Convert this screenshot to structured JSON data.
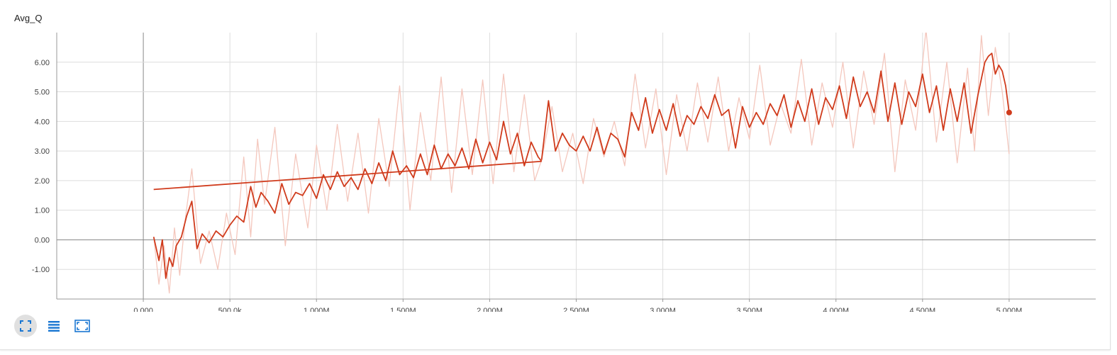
{
  "chart_data": {
    "type": "line",
    "title": "Avg_Q",
    "xlabel": "",
    "ylabel": "",
    "xlim": [
      -500000,
      5500000
    ],
    "ylim": [
      -2.0,
      7.0
    ],
    "x_ticks": [
      0,
      500000,
      1000000,
      1500000,
      2000000,
      2500000,
      3000000,
      3500000,
      4000000,
      4500000,
      5000000
    ],
    "x_tick_labels": [
      "0.000",
      "500.0k",
      "1.000M",
      "1.500M",
      "2.000M",
      "2.500M",
      "3.000M",
      "3.500M",
      "4.000M",
      "4.500M",
      "5.000M"
    ],
    "y_ticks": [
      -1,
      0,
      1,
      2,
      3,
      4,
      5,
      6
    ],
    "y_tick_labels": [
      "-1.00",
      "0.00",
      "1.00",
      "2.00",
      "3.00",
      "4.00",
      "5.00",
      "6.00"
    ],
    "grid": true,
    "series": [
      {
        "role": "raw",
        "color": "#f4c7bd",
        "x": [
          60000,
          90000,
          120000,
          150000,
          180000,
          210000,
          240000,
          280000,
          330000,
          380000,
          430000,
          480000,
          530000,
          580000,
          620000,
          660000,
          700000,
          760000,
          820000,
          880000,
          950000,
          1000000,
          1060000,
          1120000,
          1180000,
          1240000,
          1300000,
          1360000,
          1420000,
          1480000,
          1540000,
          1600000,
          1660000,
          1720000,
          1780000,
          1840000,
          1900000,
          1960000,
          2020000,
          2080000,
          2140000,
          2200000,
          2260000,
          2300000
        ],
        "y": [
          0.1,
          -1.5,
          -0.2,
          -1.8,
          0.4,
          -1.2,
          0.6,
          2.4,
          -0.8,
          0.3,
          -1.0,
          0.9,
          -0.5,
          2.8,
          0.1,
          3.4,
          1.2,
          3.8,
          -0.2,
          2.9,
          0.4,
          3.2,
          1.0,
          3.9,
          1.3,
          3.6,
          0.9,
          4.1,
          1.8,
          5.2,
          1.0,
          4.3,
          2.0,
          5.5,
          1.6,
          5.1,
          2.2,
          5.4,
          1.9,
          5.6,
          2.3,
          4.9,
          2.0,
          2.7
        ]
      },
      {
        "role": "smoothed",
        "color": "#d03b1c",
        "x": [
          60000,
          90000,
          110000,
          130000,
          150000,
          170000,
          190000,
          220000,
          250000,
          280000,
          310000,
          340000,
          380000,
          420000,
          460000,
          500000,
          540000,
          580000,
          620000,
          650000,
          680000,
          720000,
          760000,
          800000,
          840000,
          880000,
          920000,
          960000,
          1000000,
          1040000,
          1080000,
          1120000,
          1160000,
          1200000,
          1240000,
          1280000,
          1320000,
          1360000,
          1400000,
          1440000,
          1480000,
          1520000,
          1560000,
          1600000,
          1640000,
          1680000,
          1720000,
          1760000,
          1800000,
          1840000,
          1880000,
          1920000,
          1960000,
          2000000,
          2040000,
          2080000,
          2120000,
          2160000,
          2200000,
          2240000,
          2280000,
          2300000
        ],
        "y": [
          0.1,
          -0.7,
          0.0,
          -1.3,
          -0.6,
          -0.9,
          -0.2,
          0.1,
          0.8,
          1.3,
          -0.3,
          0.2,
          -0.1,
          0.3,
          0.1,
          0.5,
          0.8,
          0.6,
          1.8,
          1.1,
          1.6,
          1.3,
          0.9,
          1.9,
          1.2,
          1.6,
          1.5,
          1.9,
          1.4,
          2.2,
          1.7,
          2.3,
          1.8,
          2.1,
          1.7,
          2.4,
          1.9,
          2.6,
          2.0,
          3.0,
          2.2,
          2.5,
          2.1,
          2.9,
          2.2,
          3.2,
          2.4,
          2.9,
          2.5,
          3.1,
          2.4,
          3.4,
          2.6,
          3.3,
          2.7,
          4.0,
          2.9,
          3.6,
          2.5,
          3.3,
          2.8,
          2.65
        ]
      },
      {
        "role": "smoothed",
        "color": "#d03b1c",
        "x": [
          60000,
          2300000
        ],
        "y": [
          1.7,
          2.65
        ]
      },
      {
        "role": "raw",
        "color": "#f4c7bd",
        "x": [
          2300000,
          2360000,
          2420000,
          2480000,
          2540000,
          2600000,
          2660000,
          2720000,
          2780000,
          2840000,
          2900000,
          2960000,
          3020000,
          3080000,
          3140000,
          3200000,
          3260000,
          3320000,
          3380000,
          3440000,
          3500000,
          3560000,
          3620000,
          3680000,
          3740000,
          3800000,
          3860000,
          3920000,
          3980000,
          4040000,
          4100000,
          4160000,
          4220000,
          4280000,
          4340000,
          4400000,
          4460000,
          4520000,
          4580000,
          4640000,
          4700000,
          4760000,
          4800000,
          4840000,
          4880000,
          4920000,
          4960000,
          5000000
        ],
        "y": [
          2.7,
          4.5,
          2.3,
          3.6,
          1.9,
          4.1,
          2.8,
          4.0,
          2.5,
          5.6,
          3.1,
          5.1,
          2.2,
          4.9,
          3.0,
          5.3,
          3.3,
          5.5,
          3.0,
          4.8,
          3.4,
          5.9,
          3.2,
          4.6,
          3.6,
          6.1,
          3.2,
          5.3,
          3.8,
          6.0,
          3.1,
          5.7,
          3.9,
          6.3,
          2.3,
          5.4,
          3.7,
          7.1,
          3.3,
          6.0,
          2.6,
          5.8,
          3.0,
          6.9,
          4.2,
          6.5,
          5.0,
          2.9
        ]
      },
      {
        "role": "smoothed",
        "color": "#d03b1c",
        "x": [
          2300000,
          2340000,
          2380000,
          2420000,
          2460000,
          2500000,
          2540000,
          2580000,
          2620000,
          2660000,
          2700000,
          2740000,
          2780000,
          2820000,
          2860000,
          2900000,
          2940000,
          2980000,
          3020000,
          3060000,
          3100000,
          3140000,
          3180000,
          3220000,
          3260000,
          3300000,
          3340000,
          3380000,
          3420000,
          3460000,
          3500000,
          3540000,
          3580000,
          3620000,
          3660000,
          3700000,
          3740000,
          3780000,
          3820000,
          3860000,
          3900000,
          3940000,
          3980000,
          4020000,
          4060000,
          4100000,
          4140000,
          4180000,
          4220000,
          4260000,
          4300000,
          4340000,
          4380000,
          4420000,
          4460000,
          4500000,
          4540000,
          4580000,
          4620000,
          4660000,
          4700000,
          4740000,
          4780000,
          4820000,
          4860000,
          4880000,
          4900000,
          4920000,
          4940000,
          4960000,
          4980000,
          5000000
        ],
        "y": [
          2.7,
          4.7,
          3.0,
          3.6,
          3.2,
          3.0,
          3.5,
          3.0,
          3.8,
          2.9,
          3.6,
          3.4,
          2.8,
          4.3,
          3.7,
          4.8,
          3.6,
          4.4,
          3.7,
          4.6,
          3.5,
          4.2,
          3.9,
          4.5,
          4.1,
          4.9,
          4.2,
          4.4,
          3.1,
          4.5,
          3.8,
          4.3,
          3.9,
          4.6,
          4.2,
          4.9,
          3.8,
          4.7,
          4.0,
          5.1,
          3.9,
          4.8,
          4.4,
          5.2,
          4.1,
          5.5,
          4.5,
          5.0,
          4.3,
          5.7,
          4.0,
          5.3,
          3.9,
          5.0,
          4.5,
          5.6,
          4.3,
          5.2,
          3.7,
          5.1,
          4.0,
          5.3,
          3.6,
          4.9,
          6.0,
          6.2,
          6.3,
          5.6,
          5.9,
          5.7,
          5.2,
          4.3
        ]
      }
    ]
  },
  "toolbar": {
    "buttons": [
      {
        "name": "fit-domain-button",
        "icon": "expand-icon",
        "active": true
      },
      {
        "name": "toggle-y-log-button",
        "icon": "list-icon",
        "active": false
      },
      {
        "name": "fit-data-button",
        "icon": "fit-screen-icon",
        "active": false
      }
    ]
  },
  "colors": {
    "raw": "#f4c7bd",
    "smoothed": "#d03b1c",
    "axis": "#999999",
    "zero_line": "#888888",
    "grid": "#dddddd",
    "toolbar_icon": "#1976d2"
  }
}
